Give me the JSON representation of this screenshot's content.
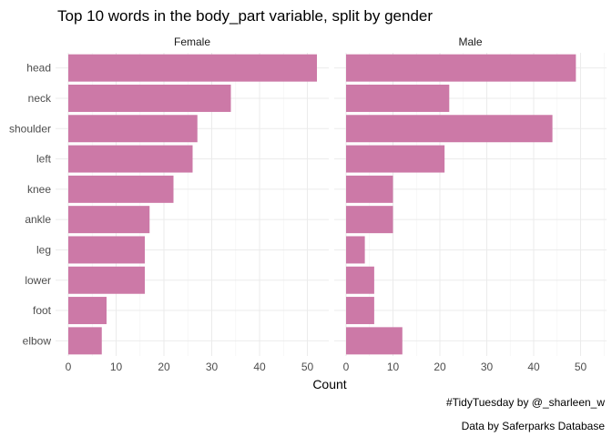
{
  "chart_data": {
    "type": "bar",
    "orientation": "horizontal",
    "title": "Top 10 words in the body_part variable, split by gender",
    "xlabel": "Count",
    "ylabel": "",
    "xlim": [
      0,
      52
    ],
    "xticks": [
      "0",
      "10",
      "20",
      "30",
      "40",
      "50"
    ],
    "categories": [
      "head",
      "neck",
      "shoulder",
      "left",
      "knee",
      "ankle",
      "leg",
      "lower",
      "foot",
      "elbow"
    ],
    "bar_color": "#cc79a7",
    "panels": [
      {
        "name": "Female",
        "values": [
          52,
          34,
          27,
          26,
          22,
          17,
          16,
          16,
          8,
          7
        ]
      },
      {
        "name": "Male",
        "values": [
          49,
          22,
          44,
          21,
          10,
          10,
          4,
          6,
          6,
          12
        ]
      }
    ],
    "grid": true,
    "legend": "none",
    "captions": [
      "#TidyTuesday by @_sharleen_w",
      "Data by Saferparks Database"
    ]
  }
}
